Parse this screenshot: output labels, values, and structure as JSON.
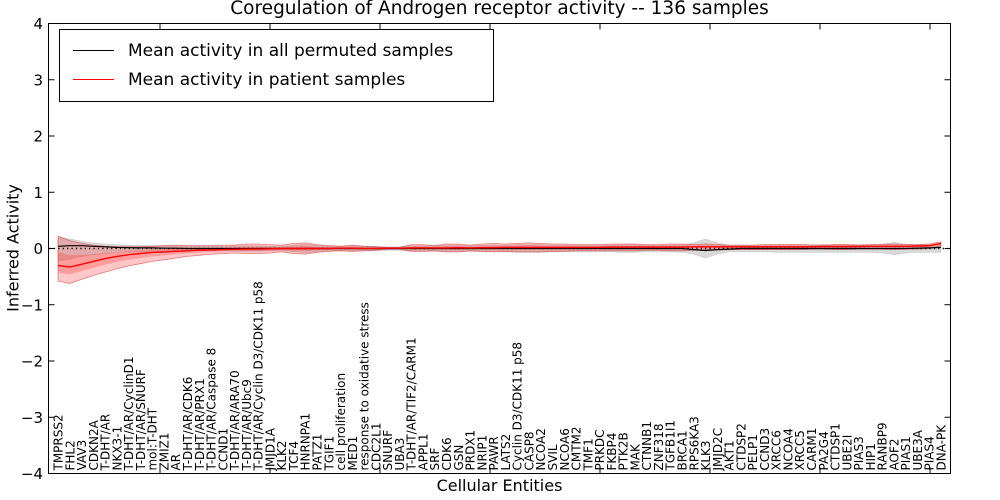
{
  "chart_data": {
    "type": "line",
    "title": "Coregulation of Androgen receptor activity -- 136 samples",
    "xlabel": "Cellular Entities",
    "ylabel": "Inferred Activity",
    "ylim": [
      -4,
      4
    ],
    "yticks": [
      -4,
      -3,
      -2,
      -1,
      0,
      1,
      2,
      3,
      4
    ],
    "grid": false,
    "legend_position": "upper left",
    "zero_line": {
      "style": "dotted",
      "color": "#000000",
      "y": 0
    },
    "categories": [
      "TMPRSS2",
      "FHL2",
      "VAV3",
      "CDKN2A",
      "T-DHT/AR",
      "NKX3-1",
      "T-DHT/AR/CyclinD1",
      "T-DHT/AR/SNURF",
      "mol:T-DHT",
      "ZMIZ1",
      "AR",
      "T-DHT/AR/CDK6",
      "T-DHT/AR/PRX1",
      "T-DHT/AR/Caspase 8",
      "CCND1",
      "T-DHT/AR/ARA70",
      "T-DHT/AR/Ubc9",
      "T-DHT/AR/Cyclin D3/CDK11 p58",
      "JMJD1A",
      "KLK2",
      "TCF4",
      "HNRNPA1",
      "PATZ1",
      "TGIF1",
      "cell proliferation",
      "MED1",
      "response to oxidative stress",
      "CDC2L1",
      "SNURF",
      "UBA3",
      "T-DHT/AR/TIF2/CARM1",
      "APPL1",
      "SRF",
      "CDK6",
      "GSN",
      "PRDX1",
      "NRIP1",
      "PAWR",
      "LATS2",
      "Cyclin D3/CDK11 p58",
      "CASP8",
      "NCOA2",
      "SVIL",
      "NCOA6",
      "CMTM2",
      "TMF1",
      "PRKDC",
      "FKBP4",
      "PTK2B",
      "MAK",
      "CTNNB1",
      "ZNF318",
      "TGFB1I1",
      "BRCA1",
      "RPS6KA3",
      "KLK3",
      "JMJD2C",
      "AKT1",
      "CTDSP2",
      "PELP1",
      "CCND3",
      "XRCC6",
      "NCOA4",
      "XRCC5",
      "CARM1",
      "PA2G4",
      "CTDSP1",
      "UBE2I",
      "PIAS3",
      "HIP1",
      "RANBP9",
      "AOF2",
      "PIAS1",
      "UBE3A",
      "PIAS4",
      "DNA-PK"
    ],
    "series": [
      {
        "name": "Mean activity in all permuted samples",
        "color": "#000000",
        "band_color": "rgba(0,0,0,0.15)",
        "values": [
          0.04,
          0.05,
          0.05,
          0.04,
          0.03,
          0.02,
          0.015,
          0.01,
          0.01,
          0.005,
          0.005,
          0,
          0,
          0,
          0,
          0,
          0,
          0,
          0,
          0,
          0,
          0,
          0,
          0,
          0,
          0,
          0,
          0,
          0,
          0,
          0,
          0,
          0,
          0,
          0,
          0,
          0,
          0,
          0,
          0,
          0,
          0,
          0,
          0,
          0,
          0,
          0,
          0,
          0,
          0,
          0,
          0,
          0,
          0,
          -0.02,
          -0.035,
          -0.02,
          -0.01,
          0,
          0,
          0,
          0,
          0,
          0,
          0,
          0,
          0,
          0,
          0,
          0,
          0,
          0,
          0,
          0.005,
          0.01,
          0.02
        ],
        "band_upper": [
          0.2,
          0.17,
          0.13,
          0.1,
          0.08,
          0.07,
          0.06,
          0.06,
          0.05,
          0.05,
          0.05,
          0.04,
          0.04,
          0.04,
          0.04,
          0.05,
          0.05,
          0.05,
          0.04,
          0.04,
          0.06,
          0.08,
          0.06,
          0.04,
          0.04,
          0.05,
          0.04,
          0.04,
          0.03,
          0.03,
          0.05,
          0.05,
          0.05,
          0.06,
          0.06,
          0.05,
          0.06,
          0.06,
          0.06,
          0.07,
          0.07,
          0.07,
          0.06,
          0.06,
          0.06,
          0.06,
          0.06,
          0.06,
          0.07,
          0.07,
          0.06,
          0.06,
          0.06,
          0.07,
          0.1,
          0.17,
          0.1,
          0.06,
          0.06,
          0.06,
          0.06,
          0.07,
          0.07,
          0.07,
          0.07,
          0.07,
          0.07,
          0.07,
          0.07,
          0.07,
          0.08,
          0.11,
          0.08,
          0.07,
          0.07,
          0.07
        ],
        "band_lower": [
          -0.22,
          -0.19,
          -0.14,
          -0.11,
          -0.09,
          -0.07,
          -0.06,
          -0.06,
          -0.05,
          -0.05,
          -0.05,
          -0.04,
          -0.04,
          -0.04,
          -0.04,
          -0.05,
          -0.05,
          -0.05,
          -0.04,
          -0.04,
          -0.06,
          -0.08,
          -0.06,
          -0.04,
          -0.04,
          -0.05,
          -0.04,
          -0.04,
          -0.03,
          -0.03,
          -0.05,
          -0.05,
          -0.05,
          -0.06,
          -0.06,
          -0.05,
          -0.06,
          -0.06,
          -0.06,
          -0.07,
          -0.07,
          -0.07,
          -0.06,
          -0.06,
          -0.06,
          -0.06,
          -0.06,
          -0.06,
          -0.07,
          -0.07,
          -0.06,
          -0.06,
          -0.06,
          -0.07,
          -0.1,
          -0.17,
          -0.1,
          -0.06,
          -0.06,
          -0.06,
          -0.06,
          -0.07,
          -0.07,
          -0.07,
          -0.07,
          -0.07,
          -0.07,
          -0.07,
          -0.07,
          -0.07,
          -0.08,
          -0.11,
          -0.08,
          -0.07,
          -0.07,
          -0.07
        ]
      },
      {
        "name": "Mean activity in patient samples",
        "color": "#ff0000",
        "band_color": "rgba(255,30,30,0.25)",
        "values": [
          -0.3,
          -0.33,
          -0.28,
          -0.23,
          -0.18,
          -0.14,
          -0.11,
          -0.09,
          -0.07,
          -0.06,
          -0.05,
          -0.04,
          -0.03,
          -0.025,
          -0.02,
          -0.015,
          -0.01,
          -0.01,
          -0.005,
          0,
          0,
          0,
          0,
          0,
          0.005,
          0.005,
          0,
          0,
          0.005,
          0.005,
          0.01,
          0.01,
          0.01,
          0.01,
          0.015,
          0.01,
          0.015,
          0.015,
          0.02,
          0.02,
          0.02,
          0.02,
          0.02,
          0.02,
          0.02,
          0.02,
          0.02,
          0.025,
          0.025,
          0.025,
          0.025,
          0.025,
          0.025,
          0.025,
          0.03,
          0.03,
          0.03,
          0.03,
          0.03,
          0.03,
          0.03,
          0.03,
          0.03,
          0.03,
          0.03,
          0.035,
          0.035,
          0.035,
          0.035,
          0.04,
          0.04,
          0.04,
          0.04,
          0.045,
          0.05,
          0.09
        ],
        "band_upper": [
          0.22,
          0.14,
          0.09,
          0.06,
          0.04,
          0.03,
          0.03,
          0.03,
          0.04,
          0.05,
          0.06,
          0.05,
          0.05,
          0.05,
          0.06,
          0.06,
          0.08,
          0.08,
          0.07,
          0.06,
          0.09,
          0.1,
          0.07,
          0.05,
          0.04,
          0.06,
          0.04,
          0.03,
          0.02,
          0.02,
          0.07,
          0.07,
          0.05,
          0.08,
          0.08,
          0.06,
          0.08,
          0.09,
          0.08,
          0.09,
          0.1,
          0.09,
          0.08,
          0.08,
          0.07,
          0.07,
          0.07,
          0.08,
          0.08,
          0.08,
          0.07,
          0.07,
          0.08,
          0.08,
          0.07,
          0.08,
          0.07,
          0.06,
          0.06,
          0.06,
          0.07,
          0.07,
          0.07,
          0.07,
          0.06,
          0.06,
          0.07,
          0.07,
          0.06,
          0.07,
          0.07,
          0.08,
          0.07,
          0.07,
          0.08,
          0.12
        ],
        "band_lower": [
          -0.58,
          -0.62,
          -0.55,
          -0.48,
          -0.42,
          -0.36,
          -0.31,
          -0.27,
          -0.23,
          -0.2,
          -0.17,
          -0.14,
          -0.12,
          -0.1,
          -0.09,
          -0.08,
          -0.09,
          -0.09,
          -0.08,
          -0.06,
          -0.09,
          -0.1,
          -0.07,
          -0.05,
          -0.04,
          -0.05,
          -0.04,
          -0.03,
          -0.01,
          -0.01,
          -0.05,
          -0.05,
          -0.04,
          -0.06,
          -0.06,
          -0.04,
          -0.05,
          -0.06,
          -0.05,
          -0.06,
          -0.06,
          -0.06,
          -0.05,
          -0.05,
          -0.04,
          -0.04,
          -0.04,
          -0.04,
          -0.04,
          -0.04,
          -0.03,
          -0.03,
          -0.04,
          -0.04,
          -0.03,
          -0.03,
          -0.03,
          -0.02,
          -0.02,
          -0.02,
          -0.02,
          -0.02,
          -0.02,
          -0.02,
          -0.01,
          -0.01,
          -0.02,
          -0.02,
          -0.01,
          -0.01,
          -0.01,
          -0.02,
          -0.01,
          -0.01,
          0.0,
          0.05
        ]
      }
    ]
  }
}
